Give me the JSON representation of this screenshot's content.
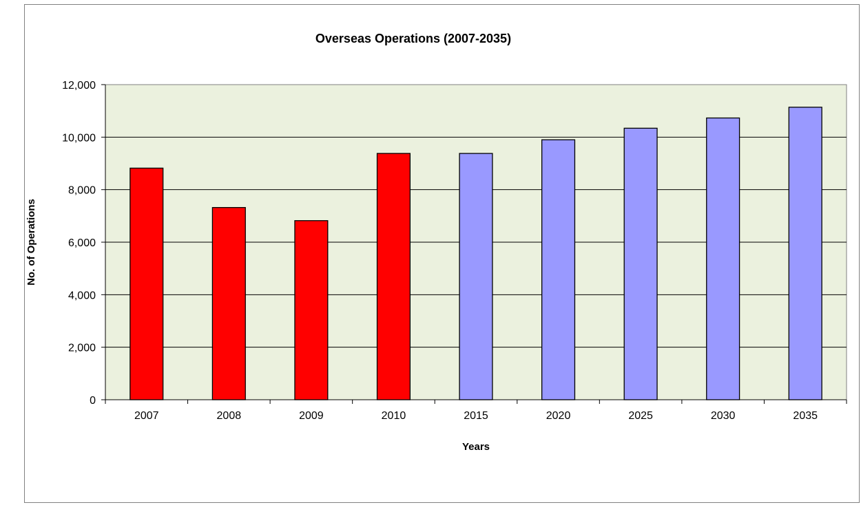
{
  "chart_data": {
    "type": "bar",
    "title": "Overseas Operations (2007-2035)",
    "xlabel": "Years",
    "ylabel": "No. of Operations",
    "categories": [
      "2007",
      "2008",
      "2009",
      "2010",
      "2015",
      "2020",
      "2025",
      "2030",
      "2035"
    ],
    "values": [
      8820,
      7320,
      6820,
      9380,
      9380,
      9900,
      10340,
      10730,
      11140
    ],
    "bar_colors": [
      "#ff0000",
      "#ff0000",
      "#ff0000",
      "#ff0000",
      "#9999ff",
      "#9999ff",
      "#9999ff",
      "#9999ff",
      "#9999ff"
    ],
    "ylim": [
      0,
      12000
    ],
    "yticks": [
      0,
      2000,
      4000,
      6000,
      8000,
      10000,
      12000
    ],
    "ytick_labels": [
      "0",
      "2,000",
      "4,000",
      "6,000",
      "8,000",
      "10,000",
      "12,000"
    ],
    "grid": true,
    "plot_background": "#ebf1de"
  }
}
